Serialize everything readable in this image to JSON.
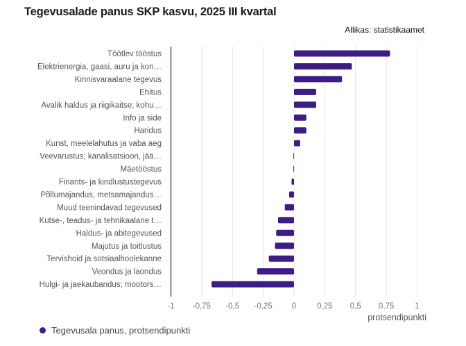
{
  "chart_data": {
    "type": "bar",
    "orientation": "horizontal",
    "title": "Tegevusalade panus SKP kasvu, 2025 III kvartal",
    "source": "Allikas: statistikaamet",
    "xlabel": "protsendipunkti",
    "ylabel": "",
    "xlim": [
      -1,
      1
    ],
    "xticks": [
      -1,
      -0.75,
      -0.5,
      -0.25,
      0,
      0.25,
      0.5,
      0.75,
      1
    ],
    "xtick_labels": [
      "-1",
      "-0,75",
      "-0,5",
      "-0,25",
      "0",
      "0,25",
      "0,5",
      "0,75",
      "1"
    ],
    "grid": true,
    "legend_position": "bottom-left",
    "categories": [
      "Töötlev tööstus",
      "Elektrienergia, gaasi, auru ja kon…",
      "Kinnisvaraalane tegevus",
      "Ehitus",
      "Avalik haldus ja riigikaitse; kohu…",
      "Info ja side",
      "Haridus",
      "Kunst, meelelahutus ja vaba aeg",
      "Veevarustus; kanalisatsioon, jää…",
      "Mäetööstus",
      "Finants- ja kindlustustegevus",
      "Põllumajandus, metsamajandus…",
      "Muud teenindavad tegevused",
      "Kutse-, teadus- ja tehnikaalane t…",
      "Haldus- ja abitegevused",
      "Majutus ja toitlustus",
      "Tervishoid ja sotsiaalhoolekanne",
      "Veondus ja laondus",
      "Hulgi- ja jaekaubandus; mootors…"
    ],
    "series": [
      {
        "name": "Tegevusala panus, protsendipunkti",
        "color": "#3d1c84",
        "values": [
          0.78,
          0.47,
          0.39,
          0.18,
          0.18,
          0.1,
          0.1,
          0.05,
          -0.005,
          -0.005,
          -0.02,
          -0.04,
          -0.075,
          -0.13,
          -0.145,
          -0.155,
          -0.205,
          -0.3,
          -0.67
        ]
      }
    ]
  }
}
